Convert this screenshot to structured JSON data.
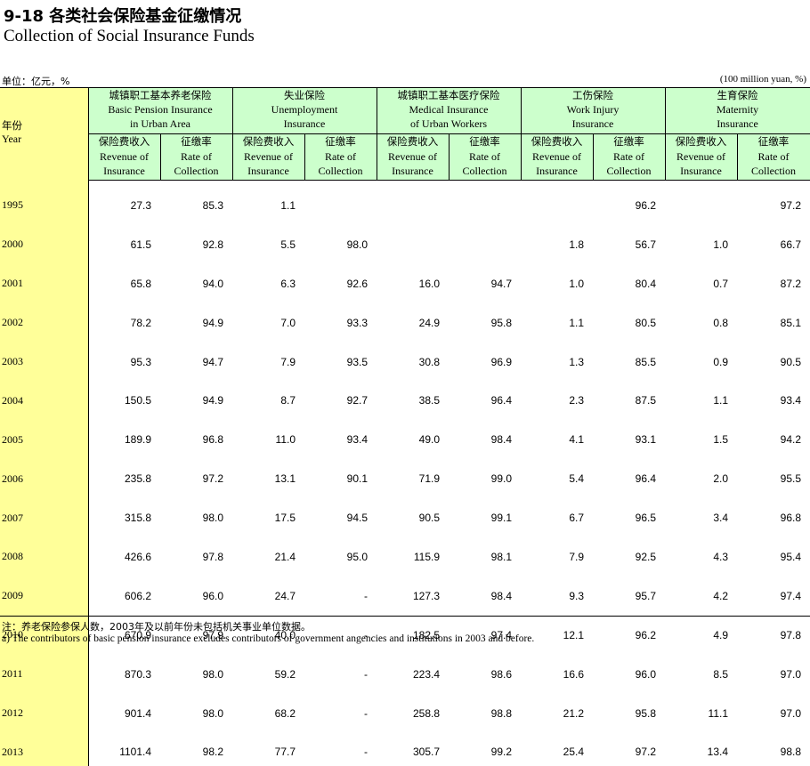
{
  "title_cn": "9-18 各类社会保险基金征缴情况",
  "title_en": "Collection of Social Insurance Funds",
  "unit_cn": "单位：亿元，%",
  "unit_en": "(100 million yuan, %)",
  "year_header_cn": "年份",
  "year_header_en": "Year",
  "groups": [
    {
      "cn": "城镇职工基本养老保险",
      "en1": "Basic Pension Insurance",
      "en2": "in Urban Area"
    },
    {
      "cn": "失业保险",
      "en1": "Unemployment",
      "en2": "Insurance"
    },
    {
      "cn": "城镇职工基本医疗保险",
      "en1": "Medical Insurance",
      "en2": "of Urban Workers"
    },
    {
      "cn": "工伤保险",
      "en1": "Work Injury",
      "en2": "Insurance"
    },
    {
      "cn": "生育保险",
      "en1": "Maternity",
      "en2": "Insurance"
    }
  ],
  "sub_revenue": {
    "cn": "保险费收入",
    "en1": "Revenue of",
    "en2": "Insurance"
  },
  "sub_rate": {
    "cn": "征缴率",
    "en1": "Rate of",
    "en2": "Collection"
  },
  "rows": [
    {
      "year": "1995",
      "v": [
        "27.3",
        "85.3",
        "1.1",
        "",
        "",
        "",
        "",
        "96.2",
        "",
        "97.2"
      ]
    },
    {
      "year": "2000",
      "v": [
        "61.5",
        "92.8",
        "5.5",
        "98.0",
        "",
        "",
        "1.8",
        "56.7",
        "1.0",
        "66.7"
      ]
    },
    {
      "year": "2001",
      "v": [
        "65.8",
        "94.0",
        "6.3",
        "92.6",
        "16.0",
        "94.7",
        "1.0",
        "80.4",
        "0.7",
        "87.2"
      ]
    },
    {
      "year": "2002",
      "v": [
        "78.2",
        "94.9",
        "7.0",
        "93.3",
        "24.9",
        "95.8",
        "1.1",
        "80.5",
        "0.8",
        "85.1"
      ]
    },
    {
      "year": "2003",
      "v": [
        "95.3",
        "94.7",
        "7.9",
        "93.5",
        "30.8",
        "96.9",
        "1.3",
        "85.5",
        "0.9",
        "90.5"
      ]
    },
    {
      "year": "2004",
      "v": [
        "150.5",
        "94.9",
        "8.7",
        "92.7",
        "38.5",
        "96.4",
        "2.3",
        "87.5",
        "1.1",
        "93.4"
      ]
    },
    {
      "year": "2005",
      "v": [
        "189.9",
        "96.8",
        "11.0",
        "93.4",
        "49.0",
        "98.4",
        "4.1",
        "93.1",
        "1.5",
        "94.2"
      ]
    },
    {
      "year": "2006",
      "v": [
        "235.8",
        "97.2",
        "13.1",
        "90.1",
        "71.9",
        "99.0",
        "5.4",
        "96.4",
        "2.0",
        "95.5"
      ]
    },
    {
      "year": "2007",
      "v": [
        "315.8",
        "98.0",
        "17.5",
        "94.5",
        "90.5",
        "99.1",
        "6.7",
        "96.5",
        "3.4",
        "96.8"
      ]
    },
    {
      "year": "2008",
      "v": [
        "426.6",
        "97.8",
        "21.4",
        "95.0",
        "115.9",
        "98.1",
        "7.9",
        "92.5",
        "4.3",
        "95.4"
      ]
    },
    {
      "year": "2009",
      "v": [
        "606.2",
        "96.0",
        "24.7",
        "-",
        "127.3",
        "98.4",
        "9.3",
        "95.7",
        "4.2",
        "97.4"
      ]
    },
    {
      "year": "2010",
      "v": [
        "670.9",
        "97.9",
        "40.0",
        "-",
        "182.5",
        "97.4",
        "12.1",
        "96.2",
        "4.9",
        "97.8"
      ]
    },
    {
      "year": "2011",
      "v": [
        "870.3",
        "98.0",
        "59.2",
        "-",
        "223.4",
        "98.6",
        "16.6",
        "96.0",
        "8.5",
        "97.0"
      ]
    },
    {
      "year": "2012",
      "v": [
        "901.4",
        "98.0",
        "68.2",
        "-",
        "258.8",
        "98.8",
        "21.2",
        "95.8",
        "11.1",
        "97.0"
      ]
    },
    {
      "year": "2013",
      "v": [
        "1101.4",
        "98.2",
        "77.7",
        "-",
        "305.7",
        "99.2",
        "25.4",
        "97.2",
        "13.4",
        "98.8"
      ]
    }
  ],
  "note_cn": "注：养老保险参保人数，2003年及以前年份未包括机关事业单位数据。",
  "note_en": "a) The contributors of basic pension insurance excludes contributors of government angencies and institutions in 2003 and before."
}
